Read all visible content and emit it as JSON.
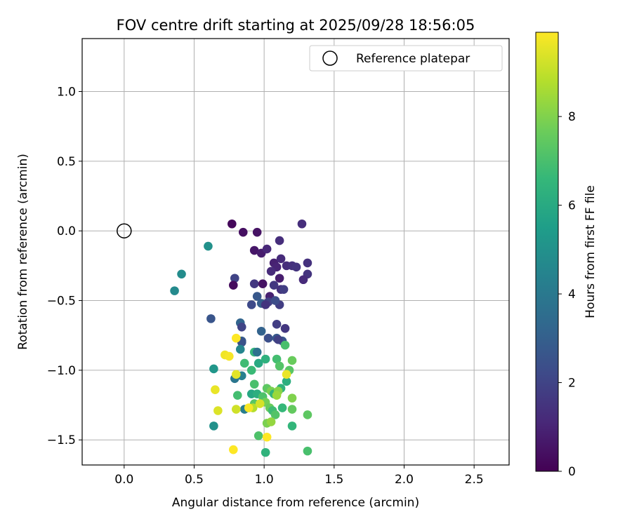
{
  "chart_data": {
    "type": "scatter",
    "title": "FOV centre drift starting at 2025/09/28 18:56:05",
    "xlabel": "Angular distance from reference (arcmin)",
    "ylabel": "Rotation from reference (arcmin)",
    "xlim": [
      -0.3,
      2.75
    ],
    "ylim": [
      -1.68,
      1.38
    ],
    "xticks": [
      0.0,
      0.5,
      1.0,
      1.5,
      2.0,
      2.5
    ],
    "xtick_labels": [
      "0.0",
      "0.5",
      "1.0",
      "1.5",
      "2.0",
      "2.5"
    ],
    "yticks": [
      1.0,
      0.5,
      0.0,
      -0.5,
      -1.0,
      -1.5
    ],
    "ytick_labels": [
      "1.0",
      "0.5",
      "0.0",
      "−0.5",
      "−1.0",
      "−1.5"
    ],
    "grid": true,
    "legend": {
      "position": "top-right",
      "label": "Reference platepar"
    },
    "reference_point": {
      "x": 0.0,
      "y": 0.0
    },
    "colorbar": {
      "label": "Hours from first FF file",
      "range": [
        0,
        9.9
      ],
      "ticks": [
        0,
        2,
        4,
        6,
        8
      ],
      "tick_labels": [
        "0",
        "2",
        "4",
        "6",
        "8"
      ],
      "colormap": "viridis"
    },
    "points": [
      {
        "x": 0.77,
        "y": 0.05,
        "c": 0.2
      },
      {
        "x": 0.85,
        "y": -0.01,
        "c": 0.4
      },
      {
        "x": 0.95,
        "y": -0.01,
        "c": 0.5
      },
      {
        "x": 1.27,
        "y": 0.05,
        "c": 1.3
      },
      {
        "x": 0.93,
        "y": -0.14,
        "c": 0.6
      },
      {
        "x": 0.98,
        "y": -0.16,
        "c": 0.8
      },
      {
        "x": 1.02,
        "y": -0.13,
        "c": 1.1
      },
      {
        "x": 1.11,
        "y": -0.07,
        "c": 1.3
      },
      {
        "x": 1.07,
        "y": -0.23,
        "c": 0.9
      },
      {
        "x": 1.12,
        "y": -0.2,
        "c": 1.2
      },
      {
        "x": 1.31,
        "y": -0.23,
        "c": 1.4
      },
      {
        "x": 1.09,
        "y": -0.26,
        "c": 1.0
      },
      {
        "x": 1.05,
        "y": -0.29,
        "c": 1.2
      },
      {
        "x": 1.16,
        "y": -0.25,
        "c": 1.3
      },
      {
        "x": 1.2,
        "y": -0.25,
        "c": 1.4
      },
      {
        "x": 1.23,
        "y": -0.26,
        "c": 1.5
      },
      {
        "x": 1.31,
        "y": -0.31,
        "c": 1.5
      },
      {
        "x": 1.28,
        "y": -0.35,
        "c": 1.2
      },
      {
        "x": 1.11,
        "y": -0.34,
        "c": 0.8
      },
      {
        "x": 0.79,
        "y": -0.34,
        "c": 2.0
      },
      {
        "x": 0.78,
        "y": -0.39,
        "c": 0.3
      },
      {
        "x": 0.93,
        "y": -0.38,
        "c": 1.6
      },
      {
        "x": 0.99,
        "y": -0.38,
        "c": 0.5
      },
      {
        "x": 1.07,
        "y": -0.39,
        "c": 1.6
      },
      {
        "x": 1.12,
        "y": -0.42,
        "c": 1.4
      },
      {
        "x": 1.14,
        "y": -0.42,
        "c": 1.8
      },
      {
        "x": 1.04,
        "y": -0.47,
        "c": 0.9
      },
      {
        "x": 0.95,
        "y": -0.47,
        "c": 2.7
      },
      {
        "x": 0.98,
        "y": -0.52,
        "c": 2.9
      },
      {
        "x": 1.03,
        "y": -0.51,
        "c": 1.9
      },
      {
        "x": 1.01,
        "y": -0.53,
        "c": 1.5
      },
      {
        "x": 0.91,
        "y": -0.53,
        "c": 2.2
      },
      {
        "x": 1.11,
        "y": -0.53,
        "c": 1.8
      },
      {
        "x": 1.08,
        "y": -0.5,
        "c": 2.3
      },
      {
        "x": 0.62,
        "y": -0.63,
        "c": 2.6
      },
      {
        "x": 0.83,
        "y": -0.66,
        "c": 3.2
      },
      {
        "x": 0.84,
        "y": -0.69,
        "c": 2.0
      },
      {
        "x": 1.09,
        "y": -0.67,
        "c": 1.8
      },
      {
        "x": 1.15,
        "y": -0.7,
        "c": 1.6
      },
      {
        "x": 0.98,
        "y": -0.72,
        "c": 3.1
      },
      {
        "x": 0.84,
        "y": -0.79,
        "c": 2.9
      },
      {
        "x": 0.84,
        "y": -0.8,
        "c": 2.5
      },
      {
        "x": 1.03,
        "y": -0.77,
        "c": 2.4
      },
      {
        "x": 1.09,
        "y": -0.77,
        "c": 2.8
      },
      {
        "x": 1.13,
        "y": -0.79,
        "c": 2.6
      },
      {
        "x": 1.1,
        "y": -0.78,
        "c": 1.9
      },
      {
        "x": 0.36,
        "y": -0.43,
        "c": 4.7
      },
      {
        "x": 0.41,
        "y": -0.31,
        "c": 4.8
      },
      {
        "x": 0.6,
        "y": -0.11,
        "c": 5.0
      },
      {
        "x": 0.64,
        "y": -0.99,
        "c": 5.2
      },
      {
        "x": 0.83,
        "y": -0.85,
        "c": 4.5
      },
      {
        "x": 0.79,
        "y": -1.06,
        "c": 3.9
      },
      {
        "x": 0.84,
        "y": -1.04,
        "c": 4.3
      },
      {
        "x": 0.64,
        "y": -1.4,
        "c": 5.0
      },
      {
        "x": 0.86,
        "y": -1.28,
        "c": 4.2
      },
      {
        "x": 0.96,
        "y": -0.95,
        "c": 6.0
      },
      {
        "x": 0.93,
        "y": -0.87,
        "c": 6.5
      },
      {
        "x": 0.95,
        "y": -0.87,
        "c": 3.7
      },
      {
        "x": 0.86,
        "y": -0.95,
        "c": 6.8
      },
      {
        "x": 1.01,
        "y": -0.92,
        "c": 6.3
      },
      {
        "x": 1.09,
        "y": -0.92,
        "c": 6.9
      },
      {
        "x": 1.11,
        "y": -0.97,
        "c": 7.2
      },
      {
        "x": 1.15,
        "y": -0.82,
        "c": 7.0
      },
      {
        "x": 1.18,
        "y": -1.0,
        "c": 7.3
      },
      {
        "x": 1.2,
        "y": -0.93,
        "c": 7.6
      },
      {
        "x": 1.16,
        "y": -1.08,
        "c": 6.2
      },
      {
        "x": 1.12,
        "y": -1.13,
        "c": 6.4
      },
      {
        "x": 0.91,
        "y": -1.0,
        "c": 6.7
      },
      {
        "x": 0.93,
        "y": -1.1,
        "c": 7.0
      },
      {
        "x": 0.81,
        "y": -1.18,
        "c": 6.9
      },
      {
        "x": 0.91,
        "y": -1.17,
        "c": 5.9
      },
      {
        "x": 0.95,
        "y": -1.17,
        "c": 6.2
      },
      {
        "x": 0.99,
        "y": -1.19,
        "c": 7.1
      },
      {
        "x": 1.02,
        "y": -1.13,
        "c": 7.4
      },
      {
        "x": 1.05,
        "y": -1.15,
        "c": 7.9
      },
      {
        "x": 1.07,
        "y": -1.17,
        "c": 6.5
      },
      {
        "x": 1.1,
        "y": -1.15,
        "c": 8.1
      },
      {
        "x": 1.09,
        "y": -1.18,
        "c": 8.4
      },
      {
        "x": 1.01,
        "y": -1.23,
        "c": 7.8
      },
      {
        "x": 1.04,
        "y": -1.27,
        "c": 7.6
      },
      {
        "x": 1.06,
        "y": -1.29,
        "c": 6.8
      },
      {
        "x": 1.08,
        "y": -1.32,
        "c": 7.2
      },
      {
        "x": 1.13,
        "y": -1.27,
        "c": 6.6
      },
      {
        "x": 1.2,
        "y": -1.2,
        "c": 8.0
      },
      {
        "x": 1.2,
        "y": -1.28,
        "c": 7.5
      },
      {
        "x": 0.93,
        "y": -1.24,
        "c": 7.3
      },
      {
        "x": 0.92,
        "y": -1.27,
        "c": 8.8
      },
      {
        "x": 1.02,
        "y": -1.38,
        "c": 7.9
      },
      {
        "x": 1.05,
        "y": -1.37,
        "c": 8.3
      },
      {
        "x": 0.96,
        "y": -1.47,
        "c": 7.1
      },
      {
        "x": 1.01,
        "y": -1.59,
        "c": 6.4
      },
      {
        "x": 1.2,
        "y": -1.4,
        "c": 6.5
      },
      {
        "x": 1.31,
        "y": -1.32,
        "c": 7.4
      },
      {
        "x": 1.31,
        "y": -1.58,
        "c": 7.0
      },
      {
        "x": 0.72,
        "y": -0.89,
        "c": 9.7
      },
      {
        "x": 0.75,
        "y": -0.9,
        "c": 9.8
      },
      {
        "x": 0.8,
        "y": -0.77,
        "c": 9.9
      },
      {
        "x": 0.8,
        "y": -1.03,
        "c": 9.5
      },
      {
        "x": 0.65,
        "y": -1.14,
        "c": 9.6
      },
      {
        "x": 0.67,
        "y": -1.29,
        "c": 9.4
      },
      {
        "x": 0.8,
        "y": -1.28,
        "c": 9.2
      },
      {
        "x": 0.89,
        "y": -1.27,
        "c": 9.8
      },
      {
        "x": 0.97,
        "y": -1.24,
        "c": 9.3
      },
      {
        "x": 0.78,
        "y": -1.57,
        "c": 9.9
      },
      {
        "x": 1.02,
        "y": -1.48,
        "c": 9.9
      },
      {
        "x": 1.16,
        "y": -1.03,
        "c": 9.6
      }
    ]
  }
}
